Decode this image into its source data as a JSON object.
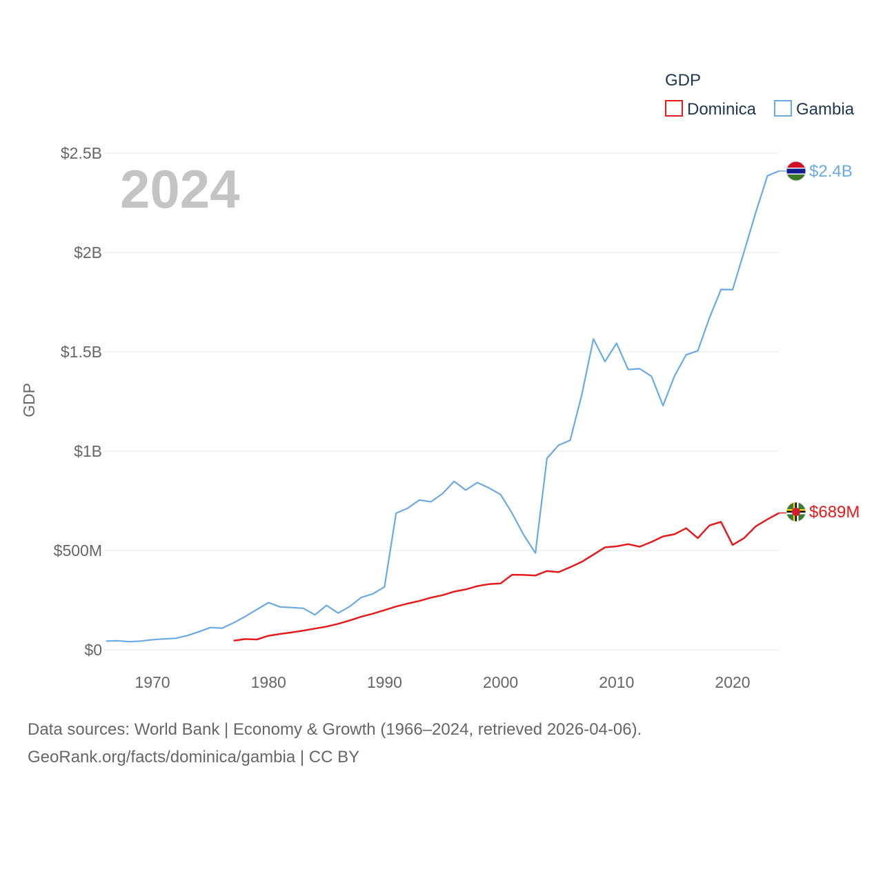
{
  "chart_data": {
    "type": "line",
    "title": "GDP",
    "year_label": "2024",
    "ylabel": "GDP",
    "xlabel": "",
    "xlim": [
      1966,
      2024
    ],
    "ylim": [
      0,
      2500000000
    ],
    "grid": true,
    "legend_position": "top-right",
    "x_ticks": [
      1970,
      1980,
      1990,
      2000,
      2010,
      2020
    ],
    "y_ticks": [
      {
        "value": 0,
        "label": "$0"
      },
      {
        "value": 500000000,
        "label": "$500M"
      },
      {
        "value": 1000000000,
        "label": "$1B"
      },
      {
        "value": 1500000000,
        "label": "$1.5B"
      },
      {
        "value": 2000000000,
        "label": "$2B"
      },
      {
        "value": 2500000000,
        "label": "$2.5B"
      }
    ],
    "series": [
      {
        "name": "Dominica",
        "color": "#e41a1c",
        "end_label": "$689M",
        "x": [
          1977,
          1978,
          1979,
          1980,
          1981,
          1982,
          1983,
          1984,
          1985,
          1986,
          1987,
          1988,
          1989,
          1990,
          1991,
          1992,
          1993,
          1994,
          1995,
          1996,
          1997,
          1998,
          1999,
          2000,
          2001,
          2002,
          2003,
          2004,
          2005,
          2006,
          2007,
          2008,
          2009,
          2010,
          2011,
          2012,
          2013,
          2014,
          2015,
          2016,
          2017,
          2018,
          2019,
          2020,
          2021,
          2022,
          2023,
          2024
        ],
        "values": [
          46000000,
          54000000,
          52000000,
          71000000,
          80000000,
          88000000,
          97000000,
          107000000,
          117000000,
          131000000,
          148000000,
          167000000,
          182000000,
          200000000,
          218000000,
          233000000,
          246000000,
          263000000,
          275000000,
          293000000,
          304000000,
          321000000,
          331000000,
          334000000,
          378000000,
          377000000,
          374000000,
          397000000,
          391000000,
          416000000,
          443000000,
          479000000,
          516000000,
          521000000,
          532000000,
          519000000,
          543000000,
          571000000,
          582000000,
          612000000,
          562000000,
          626000000,
          644000000,
          528000000,
          563000000,
          622000000,
          657000000,
          689000000
        ]
      },
      {
        "name": "Gambia",
        "color": "#6aaae4",
        "end_label": "$2.4B",
        "x": [
          1966,
          1967,
          1968,
          1969,
          1970,
          1971,
          1972,
          1973,
          1974,
          1975,
          1976,
          1977,
          1978,
          1979,
          1980,
          1981,
          1982,
          1983,
          1984,
          1985,
          1986,
          1987,
          1988,
          1989,
          1990,
          1991,
          1992,
          1993,
          1994,
          1995,
          1996,
          1997,
          1998,
          1999,
          2000,
          2001,
          2002,
          2003,
          2004,
          2005,
          2006,
          2007,
          2008,
          2009,
          2010,
          2011,
          2012,
          2013,
          2014,
          2015,
          2016,
          2017,
          2018,
          2019,
          2020,
          2021,
          2022,
          2023,
          2024
        ],
        "values": [
          44000000,
          46000000,
          41000000,
          44000000,
          51000000,
          55000000,
          58000000,
          72000000,
          91000000,
          112000000,
          109000000,
          136000000,
          168000000,
          203000000,
          238000000,
          216000000,
          213000000,
          209000000,
          176000000,
          224000000,
          185000000,
          218000000,
          264000000,
          282000000,
          317000000,
          688000000,
          713000000,
          754000000,
          745000000,
          786000000,
          848000000,
          804000000,
          842000000,
          815000000,
          782000000,
          687000000,
          578000000,
          487000000,
          964000000,
          1030000000,
          1055000000,
          1283000000,
          1565000000,
          1451000000,
          1543000000,
          1411000000,
          1415000000,
          1377000000,
          1229000000,
          1380000000,
          1485000000,
          1505000000,
          1671000000,
          1814000000,
          1813000000,
          2006000000,
          2202000000,
          2386000000,
          2410000000
        ]
      }
    ]
  },
  "footer": {
    "line1": "Data sources: World Bank | Economy & Growth (1966–2024, retrieved 2026-04-06).",
    "line2": "GeoRank.org/facts/dominica/gambia | CC BY"
  }
}
